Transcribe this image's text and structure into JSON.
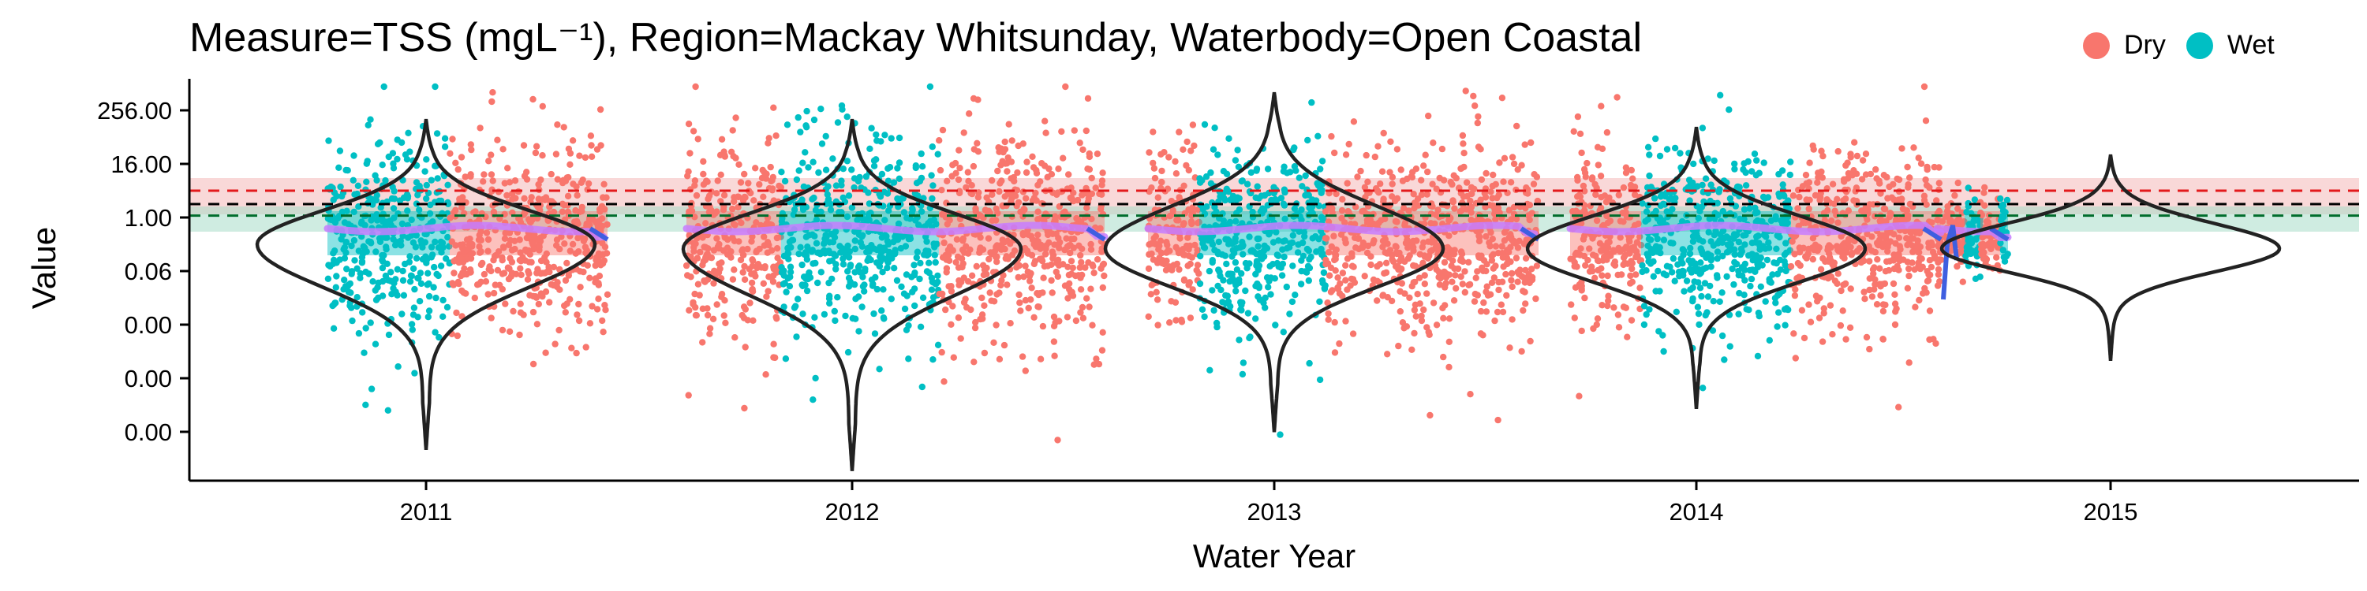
{
  "chart_data": {
    "type": "violin-scatter",
    "title": "Measure=TSS (mgL⁻¹), Region=Mackay Whitsunday, Waterbody=Open Coastal",
    "xlabel": "Water Year",
    "ylabel": "Value",
    "y_scale": "log2",
    "y_tick_labels": [
      "256.00",
      "16.00",
      "1.00",
      "0.06",
      "0.00",
      "0.00",
      "0.00"
    ],
    "y_tick_values": [
      256,
      16,
      1,
      0.0625,
      0.0039,
      0.00024,
      1.53e-05
    ],
    "categories": [
      "2011",
      "2012",
      "2013",
      "2014",
      "2015"
    ],
    "legend": {
      "placement": "top-right",
      "items": [
        {
          "label": "Dry",
          "color": "#F8766D"
        },
        {
          "label": "Wet",
          "color": "#00BFC4"
        }
      ]
    },
    "guidelines": [
      {
        "value": 4.0,
        "color": "#e31a1c",
        "style": "dashed"
      },
      {
        "value": 2.0,
        "color": "#000000",
        "style": "dashed"
      },
      {
        "value": 1.1,
        "color": "#006d2c",
        "style": "dashed"
      }
    ],
    "series": [
      {
        "name": "Dry",
        "color": "#F8766D"
      },
      {
        "name": "Wet",
        "color": "#00BFC4"
      }
    ],
    "violins": [
      {
        "year": "2011",
        "max": 150,
        "min": 6e-06,
        "mode": 0.25
      },
      {
        "year": "2012",
        "max": 150,
        "min": 2e-06,
        "mode": 0.2
      },
      {
        "year": "2013",
        "max": 600,
        "min": 1.5e-05,
        "mode": 0.2
      },
      {
        "year": "2014",
        "max": 100,
        "min": 5e-05,
        "mode": 0.2
      },
      {
        "year": "2015",
        "max": 24,
        "min": 0.0006,
        "mode": 0.2
      }
    ]
  }
}
